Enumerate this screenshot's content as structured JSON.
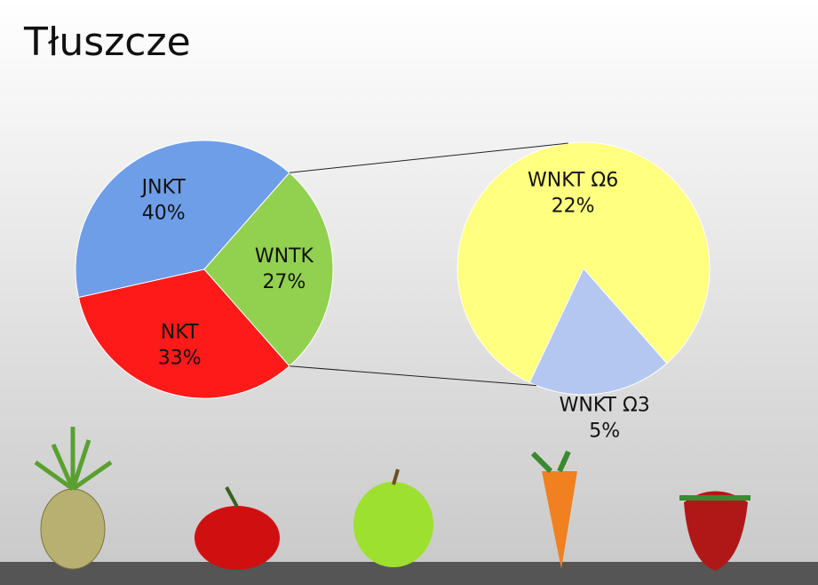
{
  "chart_data": {
    "type": "pie-of-pie",
    "title": "Tłuszcze",
    "categories": [
      "JNKT",
      "WNTK",
      "NKT"
    ],
    "values": [
      40,
      27,
      33
    ],
    "value_labels": [
      "40%",
      "27%",
      "33%"
    ],
    "colors": [
      "#6f9ee8",
      "#92d050",
      "#ff1a1a"
    ],
    "secondary": {
      "categories": [
        "WNKT Ω6",
        "WNKT Ω3"
      ],
      "values": [
        22,
        5
      ],
      "value_labels": [
        "22%",
        "5%"
      ],
      "colors": [
        "#ffff80",
        "#b4c7f0"
      ]
    }
  }
}
